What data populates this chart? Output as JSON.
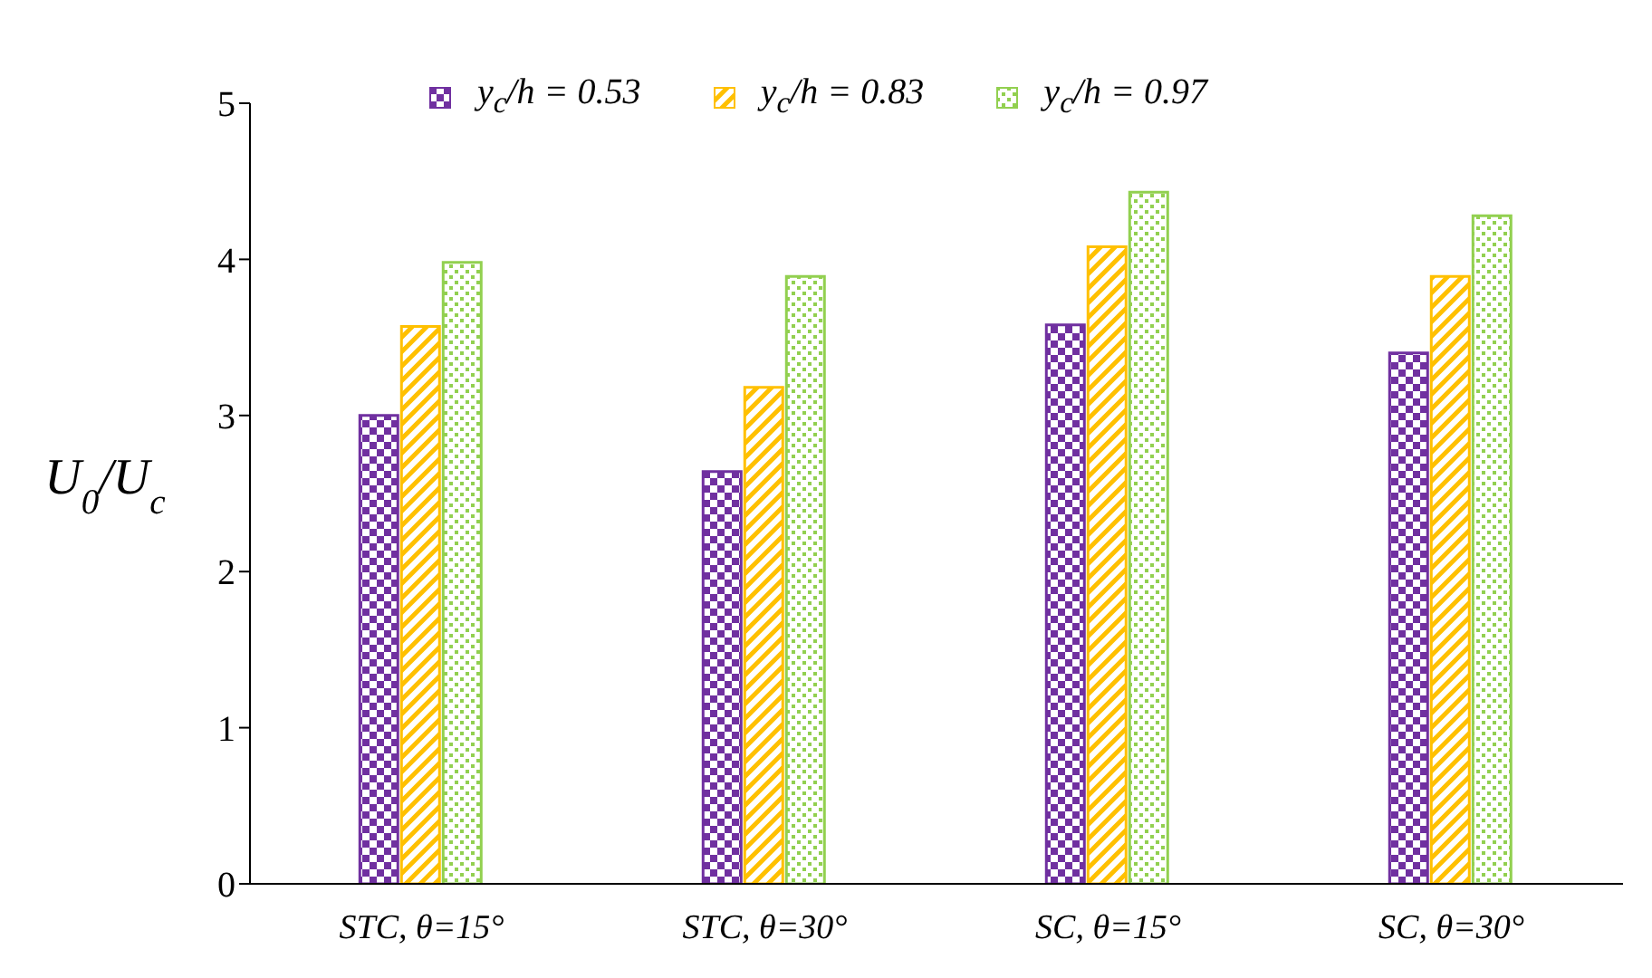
{
  "chart_data": {
    "type": "bar",
    "ylabel": "U$_{0}$/U$_{c}$",
    "categories": [
      "STC, θ=15°",
      "STC, θ=30°",
      "SC, θ=15°",
      "SC, θ=30°"
    ],
    "series": [
      {
        "name": "y$_{c}$/h = 0.53",
        "color": "#7030a0",
        "values": [
          3.0,
          2.64,
          3.58,
          3.4
        ]
      },
      {
        "name": "y$_{c}$/h = 0.83",
        "color": "#ffc000",
        "values": [
          3.57,
          3.18,
          4.08,
          3.89
        ]
      },
      {
        "name": "y$_{c}$/h = 0.97",
        "color": "#92d050",
        "values": [
          3.98,
          3.89,
          4.43,
          4.28
        ]
      }
    ],
    "ylim": [
      0,
      5
    ],
    "yticks": [
      0,
      1,
      2,
      3,
      4,
      5
    ],
    "grid": false,
    "legend": "top"
  }
}
